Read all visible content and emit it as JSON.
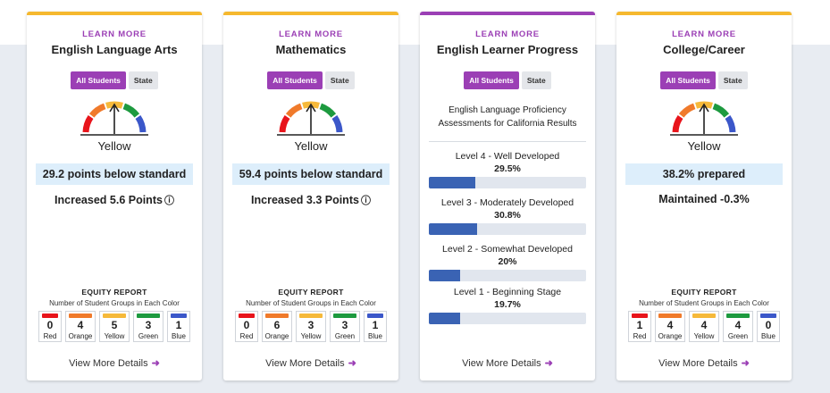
{
  "cards": [
    {
      "learn_more": "LEARN MORE",
      "title": "English Language Arts",
      "toggle": [
        "All Students",
        "State"
      ],
      "level": "Yellow",
      "status": "29.2 points below standard",
      "change": "Increased 5.6 Points",
      "change_icon": "up-arrow-circle-icon",
      "equity": {
        "title": "EQUITY REPORT",
        "subtitle": "Number of Student Groups in Each Color",
        "counts": [
          {
            "color_name": "Red",
            "count": "0",
            "color": "#e8141b"
          },
          {
            "color_name": "Orange",
            "count": "4",
            "color": "#f07a2b"
          },
          {
            "color_name": "Yellow",
            "count": "5",
            "color": "#f6b93a"
          },
          {
            "color_name": "Green",
            "count": "3",
            "color": "#1d9a3f"
          },
          {
            "color_name": "Blue",
            "count": "1",
            "color": "#3b57c9"
          }
        ]
      },
      "details": "View More Details"
    },
    {
      "learn_more": "LEARN MORE",
      "title": "Mathematics",
      "toggle": [
        "All Students",
        "State"
      ],
      "level": "Yellow",
      "status": "59.4 points below standard",
      "change": "Increased 3.3 Points",
      "change_icon": "up-arrow-circle-icon",
      "equity": {
        "title": "EQUITY REPORT",
        "subtitle": "Number of Student Groups in Each Color",
        "counts": [
          {
            "color_name": "Red",
            "count": "0",
            "color": "#e8141b"
          },
          {
            "color_name": "Orange",
            "count": "6",
            "color": "#f07a2b"
          },
          {
            "color_name": "Yellow",
            "count": "3",
            "color": "#f6b93a"
          },
          {
            "color_name": "Green",
            "count": "3",
            "color": "#1d9a3f"
          },
          {
            "color_name": "Blue",
            "count": "1",
            "color": "#3b57c9"
          }
        ]
      },
      "details": "View More Details"
    },
    {
      "learn_more": "LEARN MORE",
      "title": "English Learner Progress",
      "toggle": [
        "All Students",
        "State"
      ],
      "description": "English Language Proficiency Assessments for California Results",
      "levels": [
        {
          "name": "Level 4 - Well Developed",
          "pct": "29.5%",
          "value": 29.5
        },
        {
          "name": "Level 3 - Moderately Developed",
          "pct": "30.8%",
          "value": 30.8
        },
        {
          "name": "Level 2 - Somewhat Developed",
          "pct": "20%",
          "value": 20
        },
        {
          "name": "Level 1 - Beginning Stage",
          "pct": "19.7%",
          "value": 19.7
        }
      ],
      "details": "View More Details"
    },
    {
      "learn_more": "LEARN MORE",
      "title": "College/Career",
      "toggle": [
        "All Students",
        "State"
      ],
      "level": "Yellow",
      "status": "38.2% prepared",
      "change": "Maintained -0.3%",
      "equity": {
        "title": "EQUITY REPORT",
        "subtitle": "Number of Student Groups in Each Color",
        "counts": [
          {
            "color_name": "Red",
            "count": "1",
            "color": "#e8141b"
          },
          {
            "color_name": "Orange",
            "count": "4",
            "color": "#f07a2b"
          },
          {
            "color_name": "Yellow",
            "count": "4",
            "color": "#f6b93a"
          },
          {
            "color_name": "Green",
            "count": "4",
            "color": "#1d9a3f"
          },
          {
            "color_name": "Blue",
            "count": "0",
            "color": "#3b57c9"
          }
        ]
      },
      "details": "View More Details"
    }
  ],
  "gauge_colors": [
    "#e8141b",
    "#f07a2b",
    "#f6b93a",
    "#1d9a3f",
    "#3b57c9"
  ],
  "accent": "#9b3fb5"
}
